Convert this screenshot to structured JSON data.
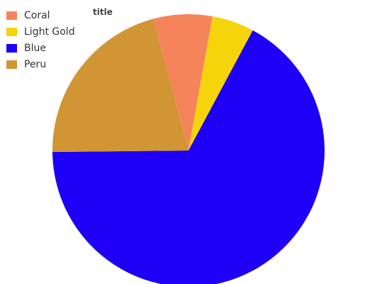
{
  "chart_data": {
    "type": "pie",
    "title": "title",
    "categories": [
      "Coral",
      "Light Gold",
      "Blue",
      "Peru"
    ],
    "values": [
      7,
      5,
      67,
      21
    ],
    "colors": [
      "#f5845a",
      "#f5d40b",
      "#1d00f5",
      "#d19534"
    ],
    "legend_position": "top-left"
  }
}
